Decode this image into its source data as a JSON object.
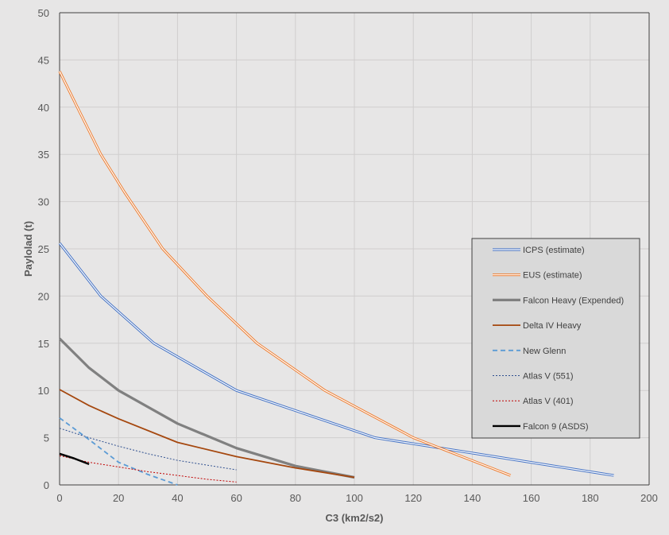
{
  "chart_data": {
    "type": "line",
    "title": "",
    "xlabel": "C3 (km2/s2)",
    "ylabel": "Paylolad (t)",
    "xlim": [
      0,
      200
    ],
    "ylim": [
      0,
      50
    ],
    "xticks": [
      0,
      20,
      40,
      60,
      80,
      100,
      120,
      140,
      160,
      180,
      200
    ],
    "yticks": [
      0,
      5,
      10,
      15,
      20,
      25,
      30,
      35,
      40,
      45,
      50
    ],
    "grid": true,
    "legend_position": "right",
    "series": [
      {
        "name": "ICPS (estimate)",
        "color": "#4472c4",
        "style": "double",
        "x": [
          0,
          14,
          32,
          60,
          107,
          188
        ],
        "y": [
          25.6,
          20,
          15,
          10,
          5,
          1
        ]
      },
      {
        "name": "EUS (estimate)",
        "color": "#ed7d31",
        "style": "double",
        "x": [
          0,
          6,
          14,
          22,
          35,
          50,
          67,
          90,
          120,
          153
        ],
        "y": [
          43.8,
          40,
          35,
          31,
          25,
          20,
          15,
          10,
          5,
          1
        ]
      },
      {
        "name": "Falcon Heavy (Expended)",
        "color": "#808080",
        "style": "thick",
        "x": [
          0,
          10,
          20,
          40,
          60,
          80,
          100
        ],
        "y": [
          15.5,
          12.4,
          10,
          6.5,
          3.9,
          2,
          0.8
        ]
      },
      {
        "name": "Delta IV Heavy",
        "color": "#a5470e",
        "style": "solid",
        "x": [
          0,
          10,
          20,
          40,
          60,
          80,
          100
        ],
        "y": [
          10.1,
          8.4,
          7,
          4.5,
          3,
          1.8,
          0.8
        ]
      },
      {
        "name": "New Glenn",
        "color": "#5b9bd5",
        "style": "dashed",
        "x": [
          0,
          10,
          20,
          30,
          40
        ],
        "y": [
          7.1,
          4.8,
          2.4,
          1.1,
          0
        ]
      },
      {
        "name": "Atlas V (551)",
        "color": "#2f4f8f",
        "style": "dotted",
        "x": [
          0,
          10,
          20,
          30,
          40,
          50,
          60
        ],
        "y": [
          6,
          5,
          4.1,
          3.3,
          2.6,
          2.1,
          1.6
        ]
      },
      {
        "name": "Atlas V (401)",
        "color": "#c00000",
        "style": "dotted",
        "x": [
          0,
          10,
          20,
          30,
          40,
          50,
          60
        ],
        "y": [
          3.1,
          2.4,
          1.9,
          1.4,
          1.0,
          0.6,
          0.3
        ]
      },
      {
        "name": "Falcon 9 (ASDS)",
        "color": "#000000",
        "style": "solid",
        "x": [
          0,
          5,
          10
        ],
        "y": [
          3.3,
          2.8,
          2.2
        ]
      }
    ]
  }
}
